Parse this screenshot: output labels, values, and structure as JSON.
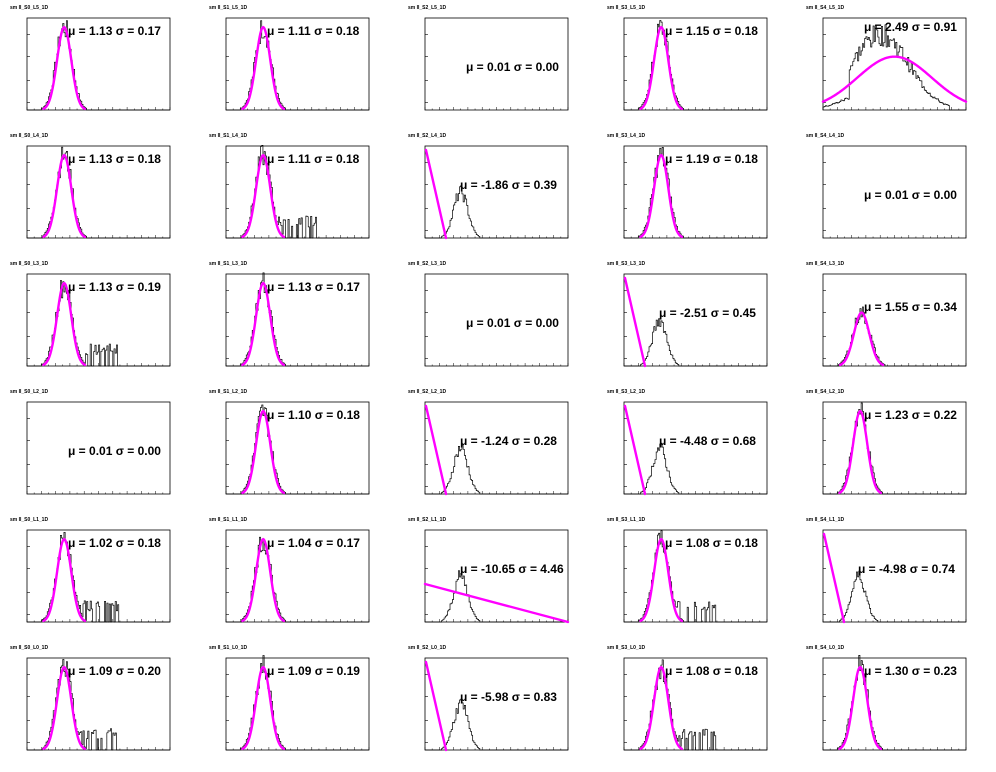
{
  "chart_data": [
    {
      "title": "sm II_S0_L5_1D",
      "mu": "1.13",
      "sigma": "0.17",
      "type": "gauss"
    },
    {
      "title": "sm II_S1_L5_1D",
      "mu": "1.11",
      "sigma": "0.18",
      "type": "gauss"
    },
    {
      "title": "sm II_S2_L5_1D",
      "mu": "0.01",
      "sigma": "0.00",
      "type": "empty"
    },
    {
      "title": "sm II_S3_L5_1D",
      "mu": "1.15",
      "sigma": "0.18",
      "type": "gauss"
    },
    {
      "title": "sm II_S4_L5_1D",
      "mu": "2.49",
      "sigma": "0.91",
      "type": "wide"
    },
    {
      "title": "sm II_S0_L4_1D",
      "mu": "1.13",
      "sigma": "0.18",
      "type": "gauss"
    },
    {
      "title": "sm II_S1_L4_1D",
      "mu": "1.11",
      "sigma": "0.18",
      "type": "gauss_tail"
    },
    {
      "title": "sm II_S2_L4_1D",
      "mu": "-1.86",
      "sigma": "0.39",
      "type": "neg"
    },
    {
      "title": "sm II_S3_L4_1D",
      "mu": "1.19",
      "sigma": "0.18",
      "type": "gauss"
    },
    {
      "title": "sm II_S4_L4_1D",
      "mu": "0.01",
      "sigma": "0.00",
      "type": "empty"
    },
    {
      "title": "sm II_S0_L3_1D",
      "mu": "1.13",
      "sigma": "0.19",
      "type": "gauss_tail"
    },
    {
      "title": "sm II_S1_L3_1D",
      "mu": "1.13",
      "sigma": "0.17",
      "type": "gauss"
    },
    {
      "title": "sm II_S2_L3_1D",
      "mu": "0.01",
      "sigma": "0.00",
      "type": "empty"
    },
    {
      "title": "sm II_S3_L3_1D",
      "mu": "-2.51",
      "sigma": "0.45",
      "type": "neg"
    },
    {
      "title": "sm II_S4_L3_1D",
      "mu": "1.55",
      "sigma": "0.34",
      "type": "mid"
    },
    {
      "title": "sm II_S0_L2_1D",
      "mu": "0.01",
      "sigma": "0.00",
      "type": "empty"
    },
    {
      "title": "sm II_S1_L2_1D",
      "mu": "1.10",
      "sigma": "0.18",
      "type": "gauss"
    },
    {
      "title": "sm II_S2_L2_1D",
      "mu": "-1.24",
      "sigma": "0.28",
      "type": "neg"
    },
    {
      "title": "sm II_S3_L2_1D",
      "mu": "-4.48",
      "sigma": "0.68",
      "type": "neg"
    },
    {
      "title": "sm II_S4_L2_1D",
      "mu": "1.23",
      "sigma": "0.22",
      "type": "gauss"
    },
    {
      "title": "sm II_S0_L1_1D",
      "mu": "1.02",
      "sigma": "0.18",
      "type": "gauss_tail"
    },
    {
      "title": "sm II_S1_L1_1D",
      "mu": "1.04",
      "sigma": "0.17",
      "type": "gauss"
    },
    {
      "title": "sm II_S2_L1_1D",
      "mu": "-10.65",
      "sigma": "4.46",
      "type": "flat"
    },
    {
      "title": "sm II_S3_L1_1D",
      "mu": "1.08",
      "sigma": "0.18",
      "type": "gauss_tail"
    },
    {
      "title": "sm II_S4_L1_1D",
      "mu": "-4.98",
      "sigma": "0.74",
      "type": "neg"
    },
    {
      "title": "sm II_S0_L0_1D",
      "mu": "1.09",
      "sigma": "0.20",
      "type": "gauss_tail"
    },
    {
      "title": "sm II_S1_L0_1D",
      "mu": "1.09",
      "sigma": "0.19",
      "type": "gauss"
    },
    {
      "title": "sm II_S2_L0_1D",
      "mu": "-5.98",
      "sigma": "0.83",
      "type": "neg"
    },
    {
      "title": "sm II_S3_L0_1D",
      "mu": "1.08",
      "sigma": "0.18",
      "type": "gauss_tail"
    },
    {
      "title": "sm II_S4_L0_1D",
      "mu": "1.30",
      "sigma": "0.23",
      "type": "gauss"
    }
  ],
  "colors": {
    "fit": "#ff00ff",
    "histogram": "#000000",
    "frame": "#000000"
  }
}
